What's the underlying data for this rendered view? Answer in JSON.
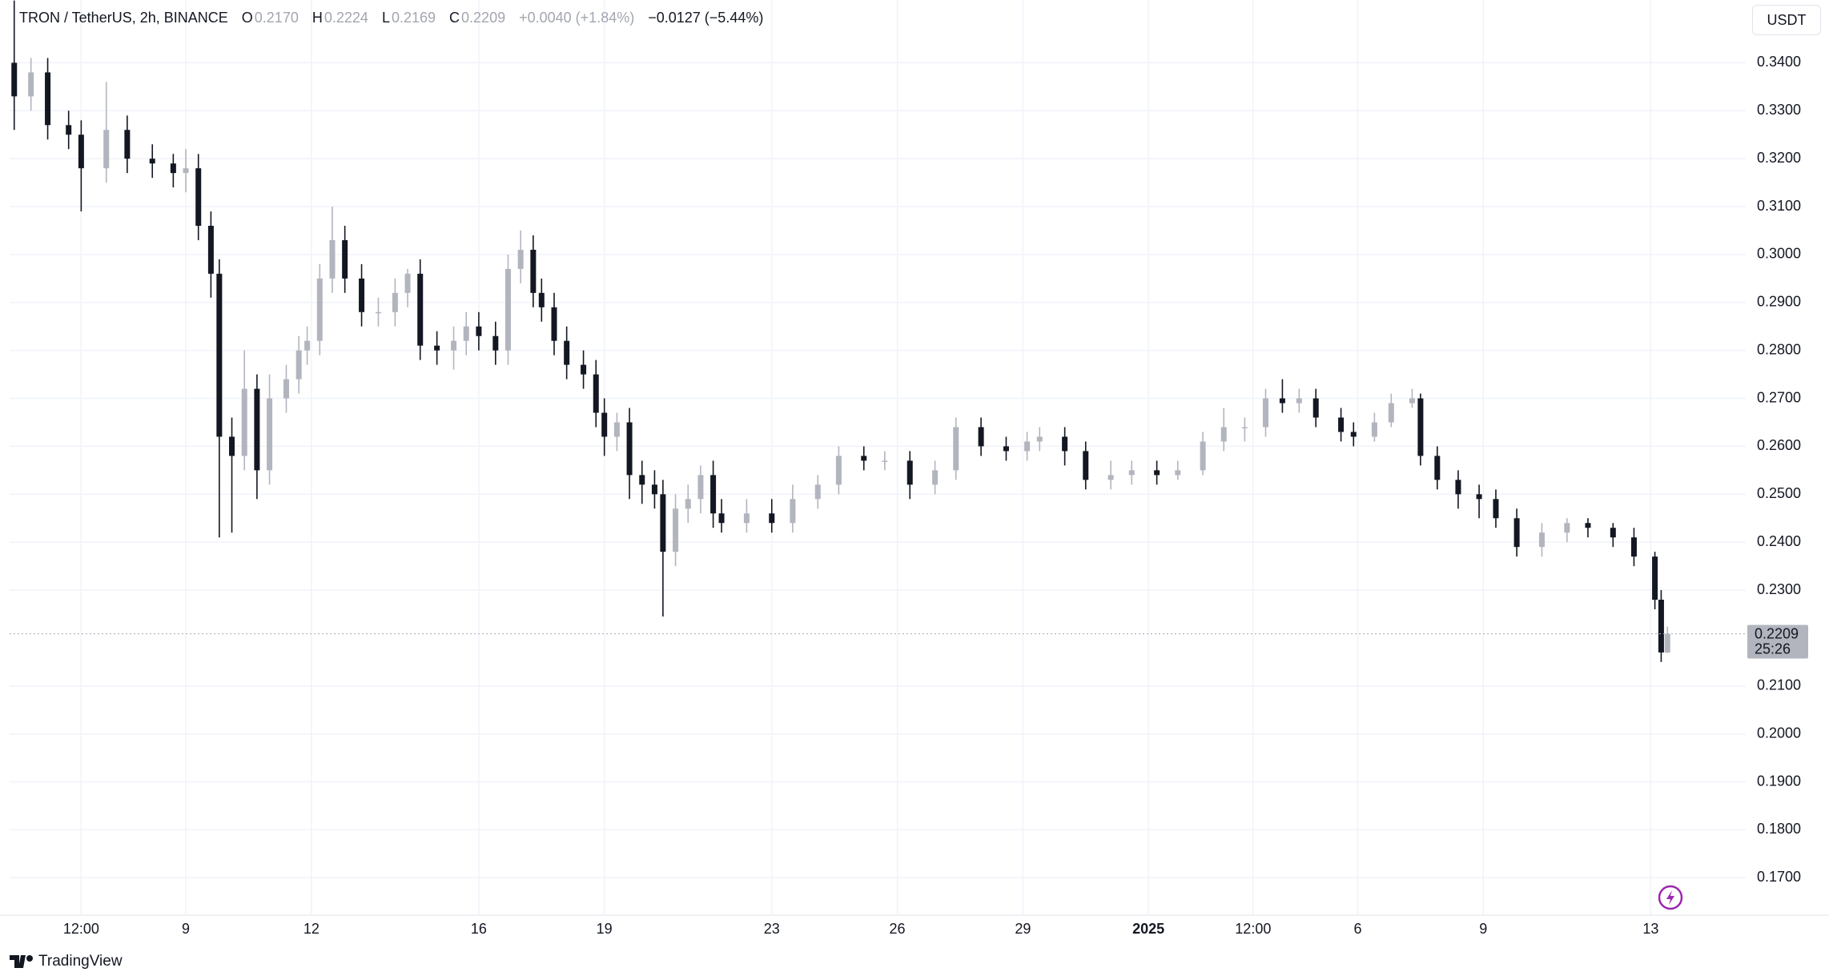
{
  "chart_data": {
    "type": "candlestick",
    "legend": {
      "symbol": "TRON / TetherUS, 2h, BINANCE",
      "open_label": "O",
      "open": "0.2170",
      "high_label": "H",
      "high": "0.2224",
      "low_label": "L",
      "low": "0.2169",
      "close_label": "C",
      "close": "0.2209",
      "change": "+0.0040 (+1.84%)",
      "range_change": "−0.0127 (−5.44%)"
    },
    "currency": "USDT",
    "last_price": {
      "value": 0.2209,
      "label": "0.2209"
    },
    "countdown": "25:26",
    "brand": "TradingView",
    "up_color": "#b2b5be",
    "down_color": "#131722",
    "grid": true,
    "xlim": [
      4.79,
      46.27
    ],
    "ylim": [
      0.1622,
      0.3531
    ],
    "xticks": [
      {
        "value": 6.5,
        "label": "12:00"
      },
      9,
      12,
      16,
      19,
      23,
      26,
      29,
      {
        "value": 32,
        "label": "2025"
      },
      {
        "value": 34.5,
        "label": "12:00"
      },
      {
        "value": 37,
        "label": "6"
      },
      {
        "value": 40,
        "label": "9"
      },
      {
        "value": 44,
        "label": "13"
      }
    ],
    "yticks": [
      {
        "value": 0.17,
        "label": "0.1700"
      },
      {
        "value": 0.18,
        "label": "0.1800"
      },
      {
        "value": 0.19,
        "label": "0.1900"
      },
      {
        "value": 0.2,
        "label": "0.2000"
      },
      {
        "value": 0.21,
        "label": "0.2100"
      },
      {
        "value": 0.23,
        "label": "0.2300"
      },
      {
        "value": 0.24,
        "label": "0.2400"
      },
      {
        "value": 0.25,
        "label": "0.2500"
      },
      {
        "value": 0.26,
        "label": "0.2600"
      },
      {
        "value": 0.27,
        "label": "0.2700"
      },
      {
        "value": 0.28,
        "label": "0.2800"
      },
      {
        "value": 0.29,
        "label": "0.2900"
      },
      {
        "value": 0.3,
        "label": "0.3000"
      },
      {
        "value": 0.31,
        "label": "0.3100"
      },
      {
        "value": 0.32,
        "label": "0.3200"
      },
      {
        "value": 0.33,
        "label": "0.3300"
      },
      {
        "value": 0.34,
        "label": "0.3400"
      }
    ],
    "x": [
      4.9,
      5.3,
      5.7,
      6.2,
      6.5,
      7.1,
      7.6,
      8.2,
      8.7,
      9.0,
      9.3,
      9.6,
      9.8,
      10.1,
      10.4,
      10.7,
      11.0,
      11.4,
      11.7,
      11.9,
      12.2,
      12.5,
      12.8,
      13.2,
      13.6,
      14.0,
      14.3,
      14.6,
      15.0,
      15.4,
      15.7,
      16.0,
      16.4,
      16.7,
      17.0,
      17.3,
      17.5,
      17.8,
      18.1,
      18.5,
      18.8,
      19.0,
      19.3,
      19.6,
      19.9,
      20.2,
      20.4,
      20.7,
      21.0,
      21.3,
      21.6,
      21.8,
      22.4,
      23.0,
      23.5,
      24.1,
      24.6,
      25.2,
      25.7,
      26.3,
      26.9,
      27.4,
      28.0,
      28.6,
      29.1,
      29.4,
      30.0,
      30.5,
      31.1,
      31.6,
      32.2,
      32.7,
      33.3,
      33.8,
      34.3,
      34.8,
      35.2,
      35.6,
      36.0,
      36.6,
      36.9,
      37.4,
      37.8,
      38.3,
      38.5,
      38.9,
      39.4,
      39.9,
      40.3,
      40.8,
      41.4,
      42.0,
      42.5,
      43.1,
      43.6,
      44.1,
      44.25,
      44.4
    ],
    "open": [
      0.34,
      0.333,
      0.338,
      0.327,
      0.325,
      0.318,
      0.326,
      0.32,
      0.319,
      0.317,
      0.318,
      0.306,
      0.296,
      0.262,
      0.258,
      0.272,
      0.255,
      0.27,
      0.274,
      0.28,
      0.282,
      0.295,
      0.303,
      0.295,
      0.288,
      0.288,
      0.292,
      0.296,
      0.281,
      0.28,
      0.282,
      0.285,
      0.283,
      0.28,
      0.297,
      0.301,
      0.292,
      0.289,
      0.282,
      0.277,
      0.275,
      0.267,
      0.262,
      0.265,
      0.254,
      0.252,
      0.25,
      0.238,
      0.247,
      0.249,
      0.254,
      0.246,
      0.244,
      0.246,
      0.244,
      0.249,
      0.252,
      0.258,
      0.257,
      0.257,
      0.252,
      0.255,
      0.264,
      0.26,
      0.259,
      0.261,
      0.262,
      0.259,
      0.253,
      0.254,
      0.255,
      0.254,
      0.255,
      0.261,
      0.264,
      0.264,
      0.27,
      0.269,
      0.27,
      0.266,
      0.263,
      0.262,
      0.265,
      0.269,
      0.27,
      0.258,
      0.253,
      0.25,
      0.249,
      0.245,
      0.239,
      0.242,
      0.244,
      0.243,
      0.241,
      0.237,
      0.228,
      0.217
    ],
    "high": [
      0.353,
      0.341,
      0.341,
      0.33,
      0.328,
      0.336,
      0.329,
      0.323,
      0.321,
      0.322,
      0.321,
      0.309,
      0.299,
      0.266,
      0.28,
      0.275,
      0.275,
      0.277,
      0.283,
      0.285,
      0.298,
      0.31,
      0.306,
      0.298,
      0.291,
      0.295,
      0.297,
      0.299,
      0.284,
      0.285,
      0.288,
      0.288,
      0.286,
      0.3,
      0.305,
      0.304,
      0.295,
      0.292,
      0.285,
      0.28,
      0.278,
      0.27,
      0.267,
      0.268,
      0.257,
      0.255,
      0.253,
      0.25,
      0.252,
      0.256,
      0.257,
      0.249,
      0.249,
      0.249,
      0.252,
      0.254,
      0.26,
      0.26,
      0.259,
      0.259,
      0.257,
      0.266,
      0.266,
      0.262,
      0.263,
      0.264,
      0.264,
      0.261,
      0.257,
      0.257,
      0.257,
      0.257,
      0.263,
      0.268,
      0.266,
      0.272,
      0.274,
      0.272,
      0.272,
      0.268,
      0.265,
      0.267,
      0.271,
      0.272,
      0.271,
      0.26,
      0.255,
      0.252,
      0.251,
      0.247,
      0.244,
      0.245,
      0.245,
      0.244,
      0.243,
      0.238,
      0.23,
      0.2224
    ],
    "low": [
      0.326,
      0.33,
      0.324,
      0.322,
      0.309,
      0.315,
      0.317,
      0.316,
      0.314,
      0.313,
      0.303,
      0.291,
      0.241,
      0.242,
      0.255,
      0.249,
      0.252,
      0.267,
      0.271,
      0.277,
      0.279,
      0.292,
      0.292,
      0.285,
      0.285,
      0.285,
      0.289,
      0.278,
      0.277,
      0.276,
      0.279,
      0.28,
      0.277,
      0.277,
      0.294,
      0.289,
      0.286,
      0.279,
      0.274,
      0.272,
      0.264,
      0.258,
      0.259,
      0.249,
      0.248,
      0.247,
      0.2245,
      0.235,
      0.244,
      0.246,
      0.243,
      0.242,
      0.242,
      0.242,
      0.242,
      0.247,
      0.25,
      0.255,
      0.255,
      0.249,
      0.25,
      0.253,
      0.258,
      0.257,
      0.257,
      0.259,
      0.256,
      0.251,
      0.251,
      0.252,
      0.252,
      0.253,
      0.254,
      0.259,
      0.261,
      0.262,
      0.267,
      0.267,
      0.264,
      0.261,
      0.26,
      0.261,
      0.264,
      0.268,
      0.256,
      0.251,
      0.247,
      0.245,
      0.243,
      0.237,
      0.237,
      0.24,
      0.241,
      0.239,
      0.235,
      0.226,
      0.215,
      0.2169
    ],
    "close": [
      0.333,
      0.338,
      0.327,
      0.325,
      0.318,
      0.326,
      0.32,
      0.319,
      0.317,
      0.318,
      0.306,
      0.296,
      0.262,
      0.258,
      0.272,
      0.255,
      0.27,
      0.274,
      0.28,
      0.282,
      0.295,
      0.303,
      0.295,
      0.288,
      0.288,
      0.292,
      0.296,
      0.281,
      0.28,
      0.282,
      0.285,
      0.283,
      0.28,
      0.297,
      0.301,
      0.292,
      0.289,
      0.282,
      0.277,
      0.275,
      0.267,
      0.262,
      0.265,
      0.254,
      0.252,
      0.25,
      0.238,
      0.247,
      0.249,
      0.254,
      0.246,
      0.244,
      0.246,
      0.244,
      0.249,
      0.252,
      0.258,
      0.257,
      0.257,
      0.252,
      0.255,
      0.264,
      0.26,
      0.259,
      0.261,
      0.262,
      0.259,
      0.253,
      0.254,
      0.255,
      0.254,
      0.255,
      0.261,
      0.264,
      0.264,
      0.27,
      0.269,
      0.27,
      0.266,
      0.263,
      0.262,
      0.265,
      0.269,
      0.27,
      0.258,
      0.253,
      0.25,
      0.249,
      0.245,
      0.239,
      0.242,
      0.244,
      0.243,
      0.241,
      0.237,
      0.228,
      0.217,
      0.2209
    ]
  }
}
